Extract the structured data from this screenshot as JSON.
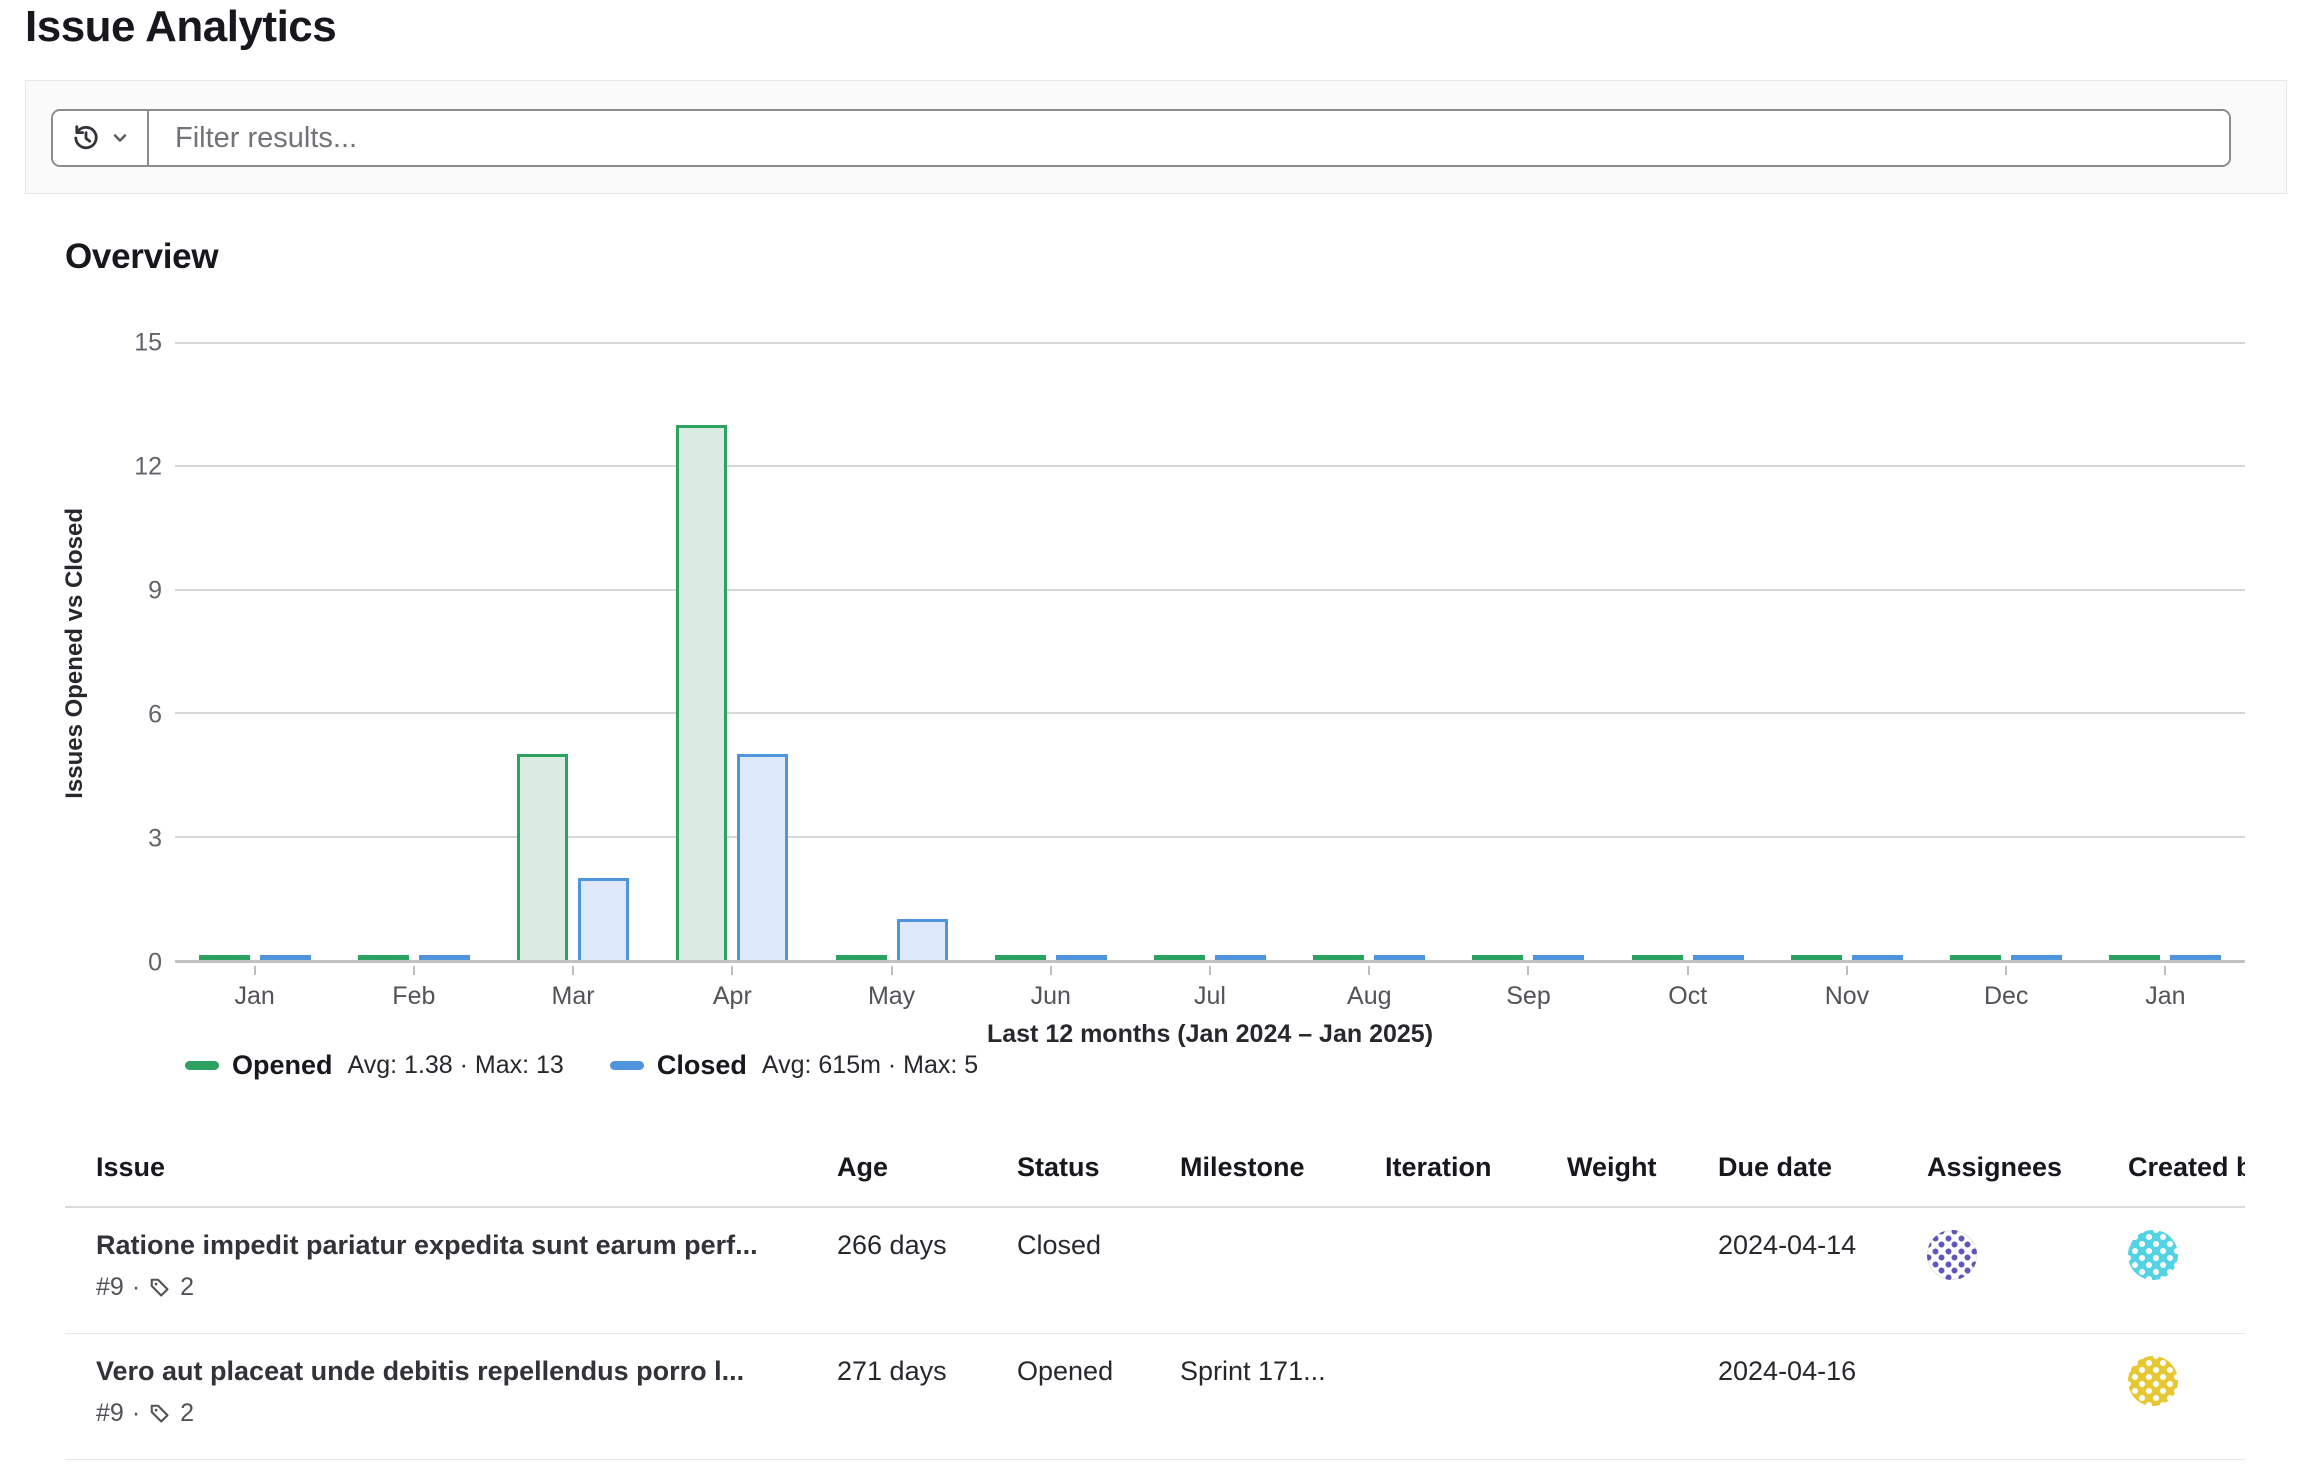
{
  "page": {
    "title": "Issue Analytics"
  },
  "filter": {
    "placeholder": "Filter results..."
  },
  "overview": {
    "heading": "Overview"
  },
  "chart_data": {
    "type": "bar",
    "title": "",
    "categories": [
      "Jan",
      "Feb",
      "Mar",
      "Apr",
      "May",
      "Jun",
      "Jul",
      "Aug",
      "Sep",
      "Oct",
      "Nov",
      "Dec",
      "Jan"
    ],
    "series": [
      {
        "name": "Opened",
        "stats": "Avg: 1.38 · Max: 13",
        "color": "#2da160",
        "fill_color": "#dcebe2",
        "values": [
          0,
          0,
          5,
          13,
          0,
          0,
          0,
          0,
          0,
          0,
          0,
          0,
          0
        ]
      },
      {
        "name": "Closed",
        "stats": "Avg: 615m · Max: 5",
        "color": "#4f94dd",
        "fill_color": "#dde9f8",
        "values": [
          0,
          0,
          2,
          5,
          1,
          0,
          0,
          0,
          0,
          0,
          0,
          0,
          0
        ]
      }
    ],
    "xlabel": "Last 12 months (Jan 2024 – Jan 2025)",
    "ylabel": "Issues Opened vs Closed",
    "ylim": [
      0,
      15
    ],
    "yticks": [
      0,
      3,
      6,
      9,
      12,
      15
    ],
    "grid": true,
    "legend_position": "bottom-left"
  },
  "table": {
    "headers": [
      "Issue",
      "Age",
      "Status",
      "Milestone",
      "Iteration",
      "Weight",
      "Due date",
      "Assignees",
      "Created by"
    ],
    "rows": [
      {
        "title": "Ratione impedit pariatur expedita sunt earum perf...",
        "ref": "#9",
        "separator": "·",
        "label_count": "2",
        "age": "266 days",
        "status": "Closed",
        "milestone": "",
        "iteration": "",
        "weight": "",
        "due_date": "2024-04-14",
        "assignee_avatar_color": "#6056bb",
        "created_by_avatar_color": "#53d3e4"
      },
      {
        "title": "Vero aut placeat unde debitis repellendus porro l...",
        "ref": "#9",
        "separator": "·",
        "label_count": "2",
        "age": "271 days",
        "status": "Opened",
        "milestone": "Sprint 171...",
        "iteration": "",
        "weight": "",
        "due_date": "2024-04-16",
        "assignee_avatar_color": "",
        "created_by_avatar_color": "#e5c832"
      }
    ]
  }
}
